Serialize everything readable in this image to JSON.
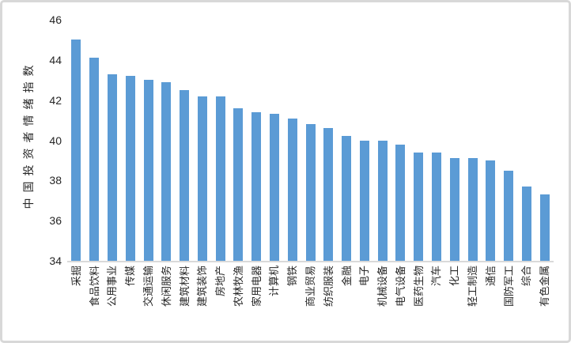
{
  "chart_data": {
    "type": "bar",
    "title": "",
    "xlabel": "",
    "ylabel": "中国投资者情绪指数",
    "ylim": [
      34,
      46
    ],
    "yticks": [
      34,
      36,
      38,
      40,
      42,
      44,
      46
    ],
    "grid": false,
    "legend": "none",
    "categories": [
      "采掘",
      "食品饮料",
      "公用事业",
      "传媒",
      "交通运输",
      "休闲服务",
      "建筑材料",
      "建筑装饰",
      "房地产",
      "农林牧渔",
      "家用电器",
      "计算机",
      "钢铁",
      "商业贸易",
      "纺织服装",
      "金融",
      "电子",
      "机械设备",
      "电气设备",
      "医药生物",
      "汽车",
      "化工",
      "轻工制造",
      "通信",
      "国防军工",
      "综合",
      "有色金属"
    ],
    "values": [
      45.0,
      44.1,
      43.3,
      43.2,
      43.0,
      42.9,
      42.5,
      42.2,
      42.2,
      41.6,
      41.4,
      41.3,
      41.1,
      40.8,
      40.6,
      40.2,
      40.0,
      40.0,
      39.8,
      39.4,
      39.4,
      39.1,
      39.1,
      39.0,
      38.5,
      37.7,
      37.3
    ],
    "colors": {
      "bar": "#5B9BD5",
      "axis_line": "#D9D9D9",
      "text": "#262626",
      "frame_border": "#D8D8D8",
      "background": "#FFFFFF"
    }
  }
}
